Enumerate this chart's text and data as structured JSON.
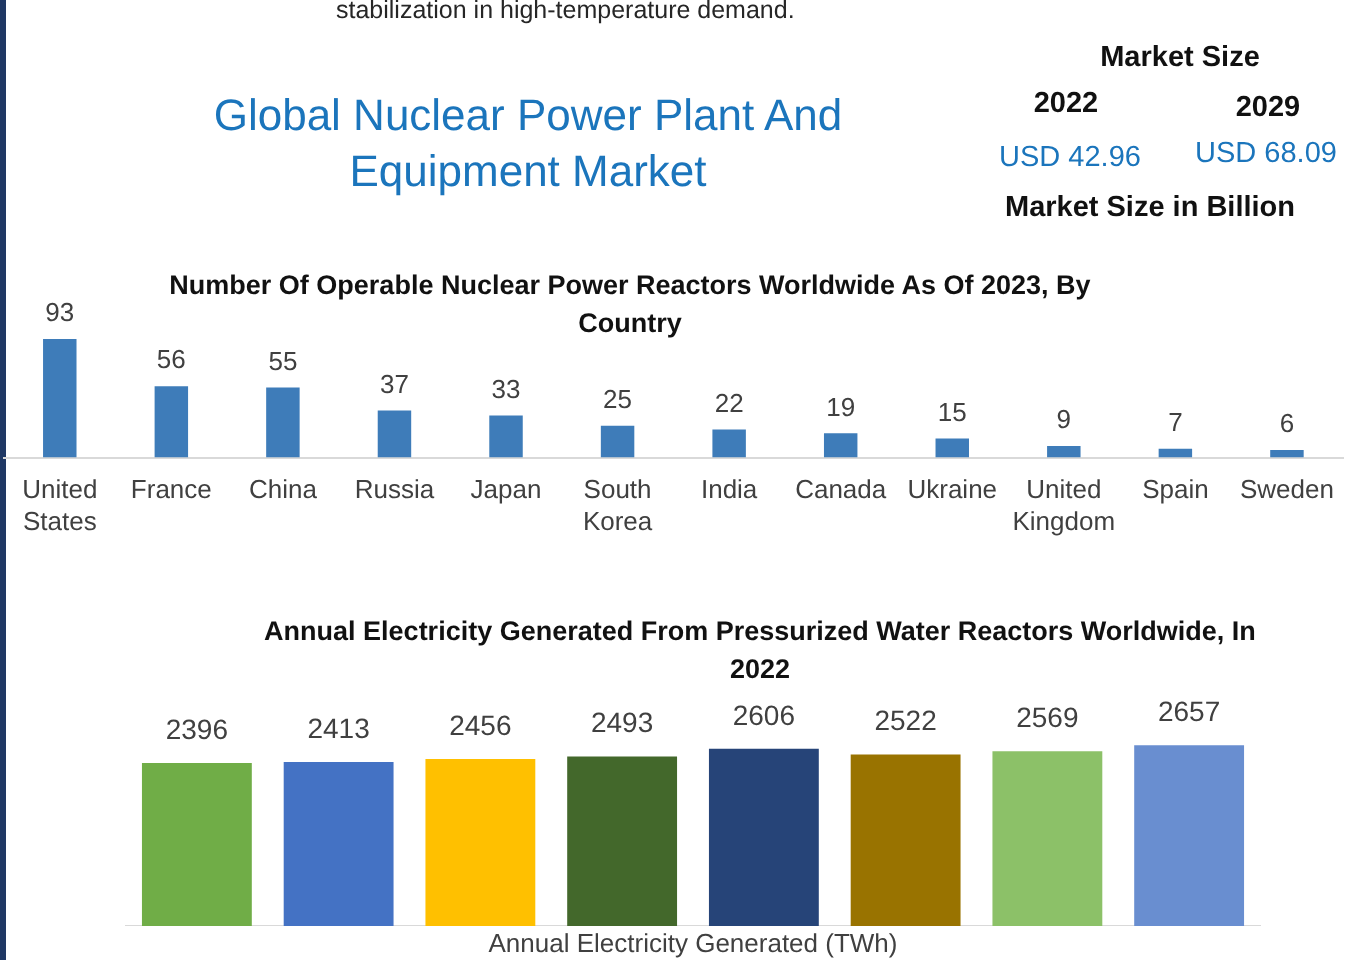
{
  "chart_data": [
    {
      "type": "other",
      "title": "Global Nuclear Power Plant And Equipment Market",
      "annotations": [
        "stabilization in high-temperature demand.",
        "Market Size",
        "2022",
        "2029",
        "USD 42.96",
        "USD 68.09",
        "Market Size in Billion"
      ]
    },
    {
      "type": "bar",
      "title": "Number Of Operable Nuclear Power Reactors Worldwide As Of 2023, By Country",
      "categories": [
        "United States",
        "France",
        "China",
        "Russia",
        "Japan",
        "South Korea",
        "India",
        "Canada",
        "Ukraine",
        "United Kingdom",
        "Spain",
        "Sweden"
      ],
      "values": [
        93,
        56,
        55,
        37,
        33,
        25,
        22,
        19,
        15,
        9,
        7,
        6
      ],
      "color": "#3e7cb9",
      "data_labels": true
    },
    {
      "type": "bar",
      "title": "Annual Electricity Generated From Pressurized Water Reactors Worldwide, In 2022",
      "xlabel": "Annual Electricity Generated (TWh)",
      "categories": [
        null,
        null,
        null,
        null,
        null,
        null,
        null,
        null
      ],
      "values": [
        2396,
        2413,
        2456,
        2493,
        2606,
        2522,
        2569,
        2657
      ],
      "colors": [
        "#70ad47",
        "#4472c4",
        "#ffc000",
        "#43682b",
        "#264478",
        "#997300",
        "#8cc168",
        "#698ed0"
      ],
      "data_labels": true
    }
  ]
}
